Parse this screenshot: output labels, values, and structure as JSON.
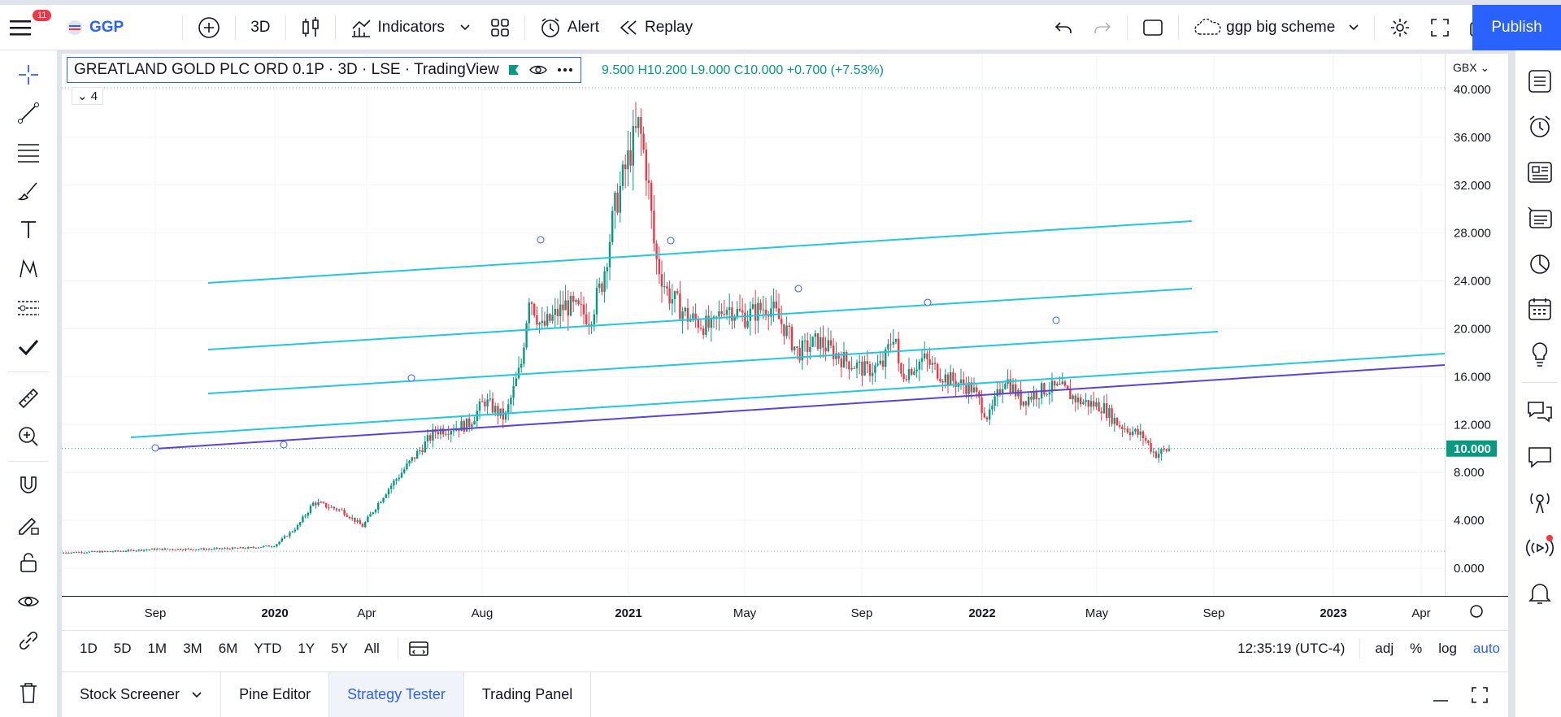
{
  "topbar": {
    "notifications": "11",
    "symbol": "GGP",
    "interval": "3D",
    "indicators": "Indicators",
    "alert": "Alert",
    "replay": "Replay",
    "layout_name": "ggp big scheme",
    "publish": "Publish"
  },
  "legend": {
    "title": "GREATLAND GOLD PLC ORD 0.1P · 3D · LSE · TradingView",
    "ohlc": "9.500  H10.200  L9.000  C10.000  +0.700 (+7.53%)",
    "collapse": "4"
  },
  "price_axis": {
    "currency": "GBX",
    "current": "10.000",
    "ticks": [
      "40.000",
      "36.000",
      "32.000",
      "28.000",
      "24.000",
      "20.000",
      "16.000",
      "12.000",
      "8.000",
      "4.000",
      "0.000"
    ]
  },
  "time_axis": {
    "ticks": [
      "Sep",
      "2020",
      "Apr",
      "Aug",
      "2021",
      "May",
      "Sep",
      "2022",
      "May",
      "Sep",
      "2023",
      "Apr"
    ]
  },
  "timebar": {
    "ranges": [
      "1D",
      "5D",
      "1M",
      "3M",
      "6M",
      "YTD",
      "1Y",
      "5Y",
      "All"
    ],
    "clock": "12:35:19 (UTC-4)",
    "adj": "adj",
    "pct": "%",
    "log": "log",
    "auto": "auto"
  },
  "bottom_tabs": [
    "Stock Screener",
    "Pine Editor",
    "Strategy Tester",
    "Trading Panel"
  ],
  "colors": {
    "up": "#089981",
    "down": "#f23645",
    "channel": "#26c6da",
    "trend": "#5b43d6",
    "accent": "#2962ff"
  }
}
